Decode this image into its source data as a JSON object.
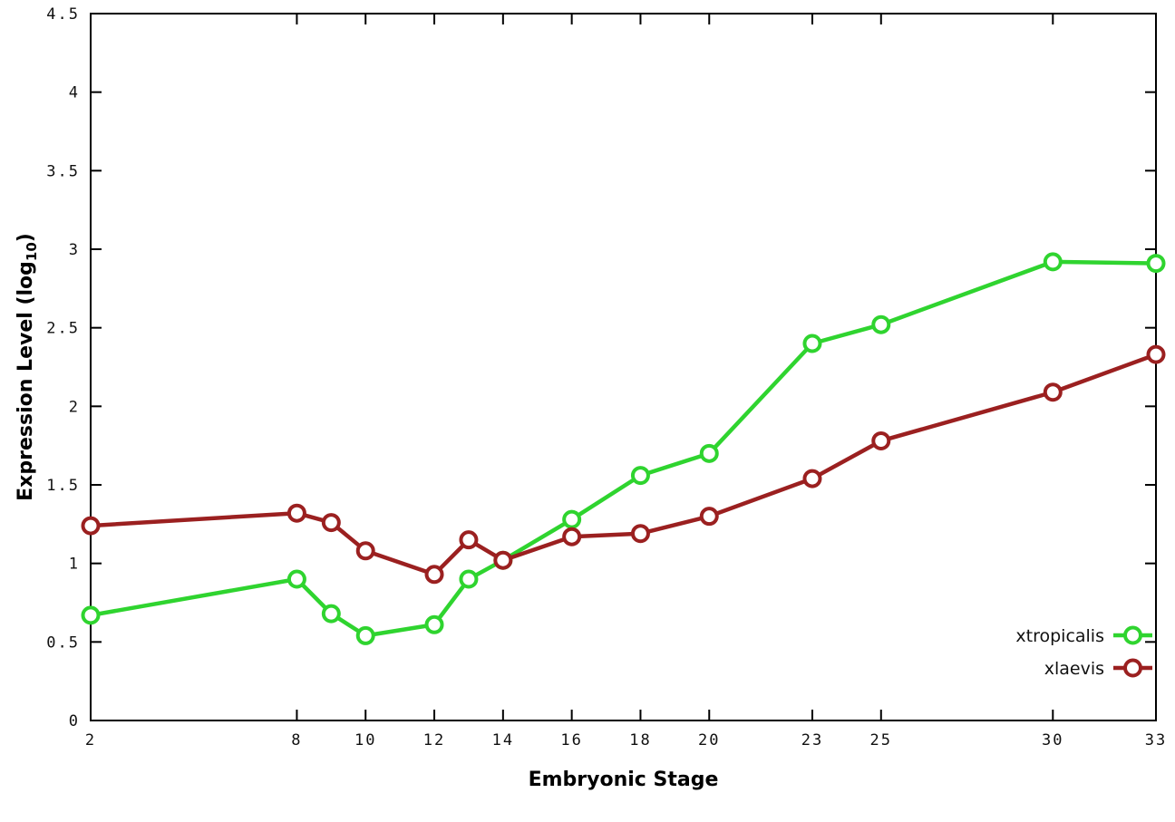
{
  "chart_data": {
    "type": "line",
    "title": "",
    "xlabel": "Embryonic Stage",
    "ylabel": "Expression Level (log10)",
    "ylabel_parts": {
      "main": "Expression Level (log",
      "sub": "10",
      "close": ")"
    },
    "xlim": [
      2,
      33
    ],
    "ylim": [
      0,
      4.5
    ],
    "grid": false,
    "legend_position": "bottom-right",
    "background_color": "#ffffff",
    "axis_color": "#000000",
    "x_ticks": [
      {
        "v": 2,
        "label": "2"
      },
      {
        "v": 8,
        "label": "8"
      },
      {
        "v": 10,
        "label": "10"
      },
      {
        "v": 12,
        "label": "12"
      },
      {
        "v": 14,
        "label": "14"
      },
      {
        "v": 16,
        "label": "16"
      },
      {
        "v": 18,
        "label": "18"
      },
      {
        "v": 20,
        "label": "20"
      },
      {
        "v": 23,
        "label": "23"
      },
      {
        "v": 25,
        "label": "25"
      },
      {
        "v": 30,
        "label": "30"
      },
      {
        "v": 33,
        "label": "33"
      }
    ],
    "y_ticks": [
      {
        "v": 0,
        "label": "0"
      },
      {
        "v": 0.5,
        "label": "0.5"
      },
      {
        "v": 1,
        "label": "1"
      },
      {
        "v": 1.5,
        "label": "1.5"
      },
      {
        "v": 2,
        "label": "2"
      },
      {
        "v": 2.5,
        "label": "2.5"
      },
      {
        "v": 3,
        "label": "3"
      },
      {
        "v": 3.5,
        "label": "3.5"
      },
      {
        "v": 4,
        "label": "4"
      },
      {
        "v": 4.5,
        "label": "4.5"
      }
    ],
    "x": [
      2,
      8,
      9,
      10,
      12,
      13,
      14,
      16,
      18,
      20,
      23,
      25,
      30,
      33
    ],
    "series": [
      {
        "name": "xtropicalis",
        "color": "#2fd42f",
        "values": [
          0.67,
          0.9,
          0.68,
          0.54,
          0.61,
          0.9,
          1.02,
          1.28,
          1.56,
          1.7,
          2.4,
          2.52,
          2.92,
          2.91
        ]
      },
      {
        "name": "xlaevis",
        "color": "#9b2020",
        "values": [
          1.24,
          1.32,
          1.26,
          1.08,
          0.93,
          1.15,
          1.02,
          1.17,
          1.19,
          1.3,
          1.54,
          1.78,
          2.09,
          2.33
        ]
      }
    ]
  }
}
